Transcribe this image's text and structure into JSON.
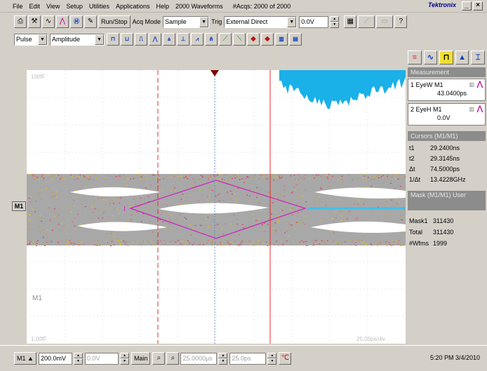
{
  "menubar": {
    "items": [
      "File",
      "Edit",
      "View",
      "Setup",
      "Utilities",
      "Applications",
      "Help"
    ],
    "waveforms": "2000 Waveforms",
    "acqs": "#Acqs: 2000 of 2000",
    "brand": "Tektronix"
  },
  "toolbar": {
    "run_stop": "Run/Stop",
    "acq_mode_label": "Acq Mode",
    "acq_mode_value": "Sample",
    "trig_label": "Trig",
    "trig_value": "External Direct",
    "trig_level": "0.0V"
  },
  "toolbar2": {
    "meas_type": "Pulse",
    "meas_param": "Amplitude"
  },
  "scope": {
    "top_ref": "100fF",
    "ch_label": "M1",
    "bottom_left": "1.00fF",
    "bottom_right": "25.00ps/div",
    "mask_marker": "I"
  },
  "right_panel": {
    "measurement_header": "Measurement",
    "meas1": {
      "name": "1 EyeW  M1",
      "value": "43.0400ps"
    },
    "meas2": {
      "name": "2 EyeH  M1",
      "value": "0.0V"
    },
    "cursors_header": "Cursors (M1/M1)",
    "cursors": [
      {
        "k": "t1",
        "v": "29.2400ns"
      },
      {
        "k": "t2",
        "v": "29.3145ns"
      },
      {
        "k": "Δt",
        "v": "74.5000ps"
      },
      {
        "k": "1/Δt",
        "v": "13.4228GHz"
      }
    ],
    "mask_header": "Mask (M1/M1) User",
    "mask": [
      {
        "k": "Mask1",
        "v": "311430"
      },
      {
        "k": "Total",
        "v": "311430"
      },
      {
        "k": "#Wfms",
        "v": "1999"
      }
    ]
  },
  "bottombar": {
    "ch": "M1",
    "scale": "200.0mV",
    "offset": "0.0V",
    "main": "Main",
    "horiz_pos": "25.0000μs",
    "horiz_scale": "25.0ps",
    "clock": "5:20 PM 3/4/2010"
  }
}
